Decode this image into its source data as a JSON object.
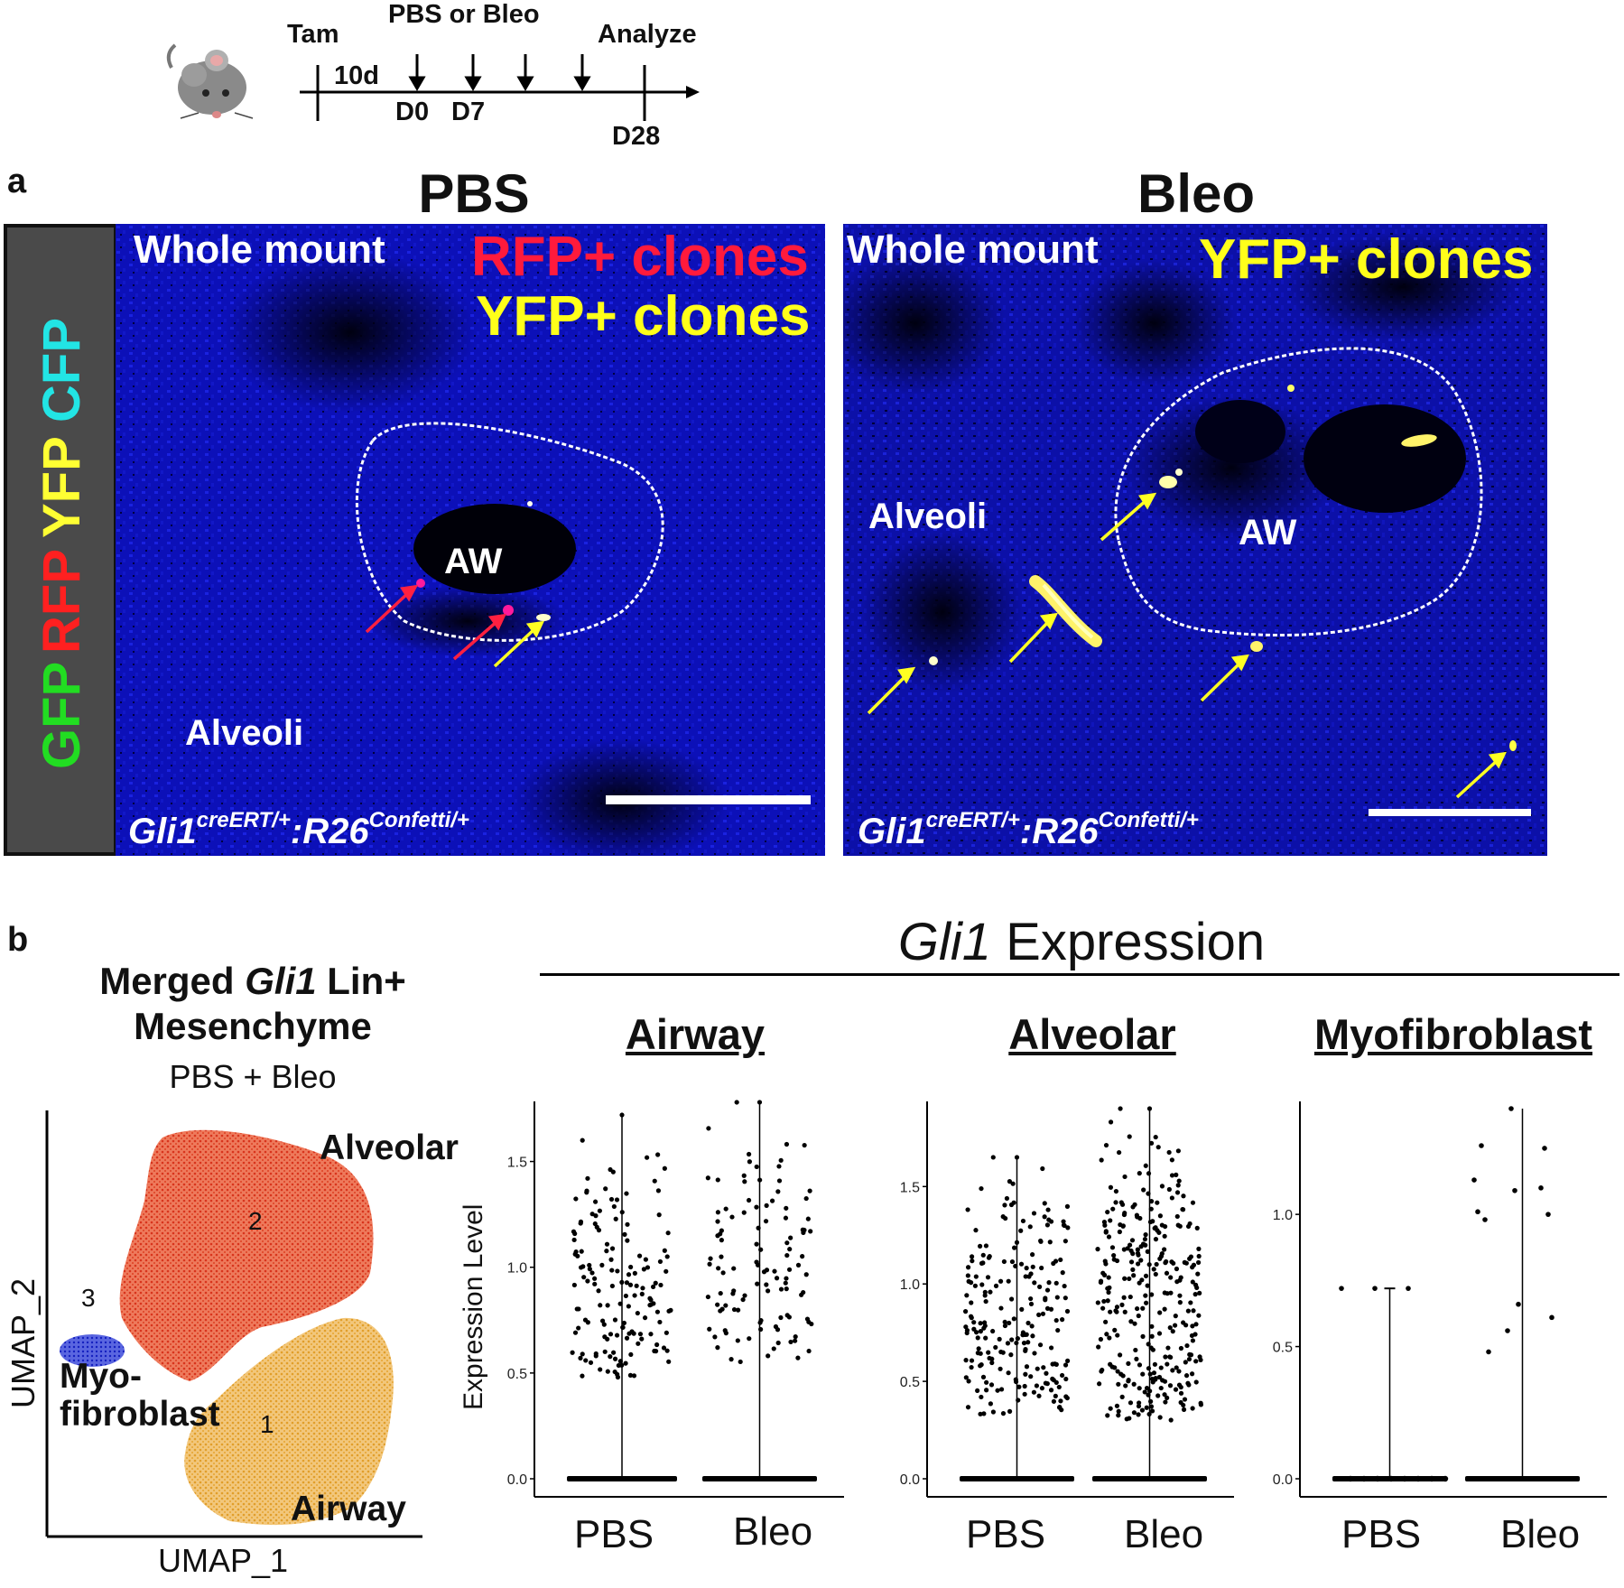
{
  "timeline": {
    "tam_label": "Tam",
    "treatment_label": "PBS or Bleo",
    "analyze_label": "Analyze",
    "interval_label": "10d",
    "d0_label": "D0",
    "d7_label": "D7",
    "d28_label": "D28",
    "mouse_icon": "mouse-icon"
  },
  "panel_a": {
    "letter": "a",
    "channels": [
      "GFP",
      "RFP",
      "YFP",
      "CFP"
    ],
    "channel_colors": [
      "#22dd22",
      "#ff2020",
      "#ffff33",
      "#22e5e5"
    ],
    "pbs": {
      "title": "PBS",
      "whole_mount": "Whole mount",
      "clones_line1": "RFP+ clones",
      "clones_line2": "YFP+ clones",
      "airway": "AW",
      "alveoli": "Alveoli",
      "genotype_base1": "Gli1",
      "genotype_sup1": "creERT/+",
      "genotype_sep": ":R26",
      "genotype_sup2": "Confetti/+"
    },
    "bleo": {
      "title": "Bleo",
      "whole_mount": "Whole mount",
      "clones_line1": "YFP+ clones",
      "airway": "AW",
      "alveoli": "Alveoli",
      "genotype_base1": "Gli1",
      "genotype_sup1": "creERT/+",
      "genotype_sep": ":R26",
      "genotype_sup2": "Confetti/+"
    },
    "colors": {
      "rfp": "#ff1a3c",
      "yfp": "#ffff1a",
      "dapi": "#0a0aa8"
    }
  },
  "panel_b": {
    "letter": "b",
    "umap": {
      "title_part1": "Merged ",
      "title_gene": "Gli1",
      "title_part2": " Lin+",
      "title_line2": "Mesenchyme",
      "subtitle": "PBS + Bleo",
      "x_axis": "UMAP_1",
      "y_axis": "UMAP_2",
      "clusters": [
        {
          "id": "1",
          "name": "Airway",
          "color": "#e8a93c"
        },
        {
          "id": "2",
          "name": "Alveolar",
          "color": "#e0442a"
        },
        {
          "id": "3",
          "name": "Myo-\nfibroblast",
          "color": "#2233cc"
        }
      ],
      "myo_line1": "Myo-",
      "myo_line2": "fibroblast"
    },
    "expression_title_gene": "Gli1",
    "expression_title_rest": " Expression",
    "y_axis_label": "Expression Level"
  },
  "chart_data": [
    {
      "type": "scatter",
      "title": "Airway",
      "ylabel": "Expression Level",
      "categories": [
        "PBS",
        "Bleo"
      ],
      "ylim": [
        0,
        1.75
      ],
      "yticks": [
        0.0,
        0.5,
        1.0,
        1.5
      ],
      "ytick_labels": [
        "0.0",
        "0.5",
        "1.0",
        "1.5"
      ],
      "max_values": [
        1.72,
        1.78
      ],
      "expressing_range": [
        [
          0.48,
          1.6
        ],
        [
          0.55,
          1.78
        ]
      ],
      "baseline_value": 0.0
    },
    {
      "type": "scatter",
      "title": "Alveolar",
      "ylabel": "",
      "categories": [
        "PBS",
        "Bleo"
      ],
      "ylim": [
        0,
        1.9
      ],
      "yticks": [
        0.0,
        0.5,
        1.0,
        1.5
      ],
      "ytick_labels": [
        "0.0",
        "0.5",
        "1.0",
        "1.5"
      ],
      "max_values": [
        1.65,
        1.9
      ],
      "expressing_range": [
        [
          0.33,
          1.65
        ],
        [
          0.3,
          1.9
        ]
      ],
      "baseline_value": 0.0
    },
    {
      "type": "scatter",
      "title": "Myofibroblast",
      "ylabel": "",
      "categories": [
        "PBS",
        "Bleo"
      ],
      "ylim": [
        0,
        1.4
      ],
      "yticks": [
        0.0,
        0.5,
        1.0
      ],
      "ytick_labels": [
        "0.0",
        "0.5",
        "1.0"
      ],
      "max_values": [
        0.72,
        1.4
      ],
      "points": [
        [
          [
            0.72
          ],
          [
            0.72
          ],
          [
            0.72
          ]
        ],
        [
          [
            1.13
          ],
          [
            0.56
          ],
          [
            1.1
          ],
          [
            1.01
          ],
          [
            1.4
          ],
          [
            1.25
          ],
          [
            1.26
          ],
          [
            1.09
          ],
          [
            1.0
          ],
          [
            0.98
          ],
          [
            0.66
          ],
          [
            0.61
          ],
          [
            0.48
          ]
        ]
      ],
      "baseline_value": 0.0
    }
  ]
}
